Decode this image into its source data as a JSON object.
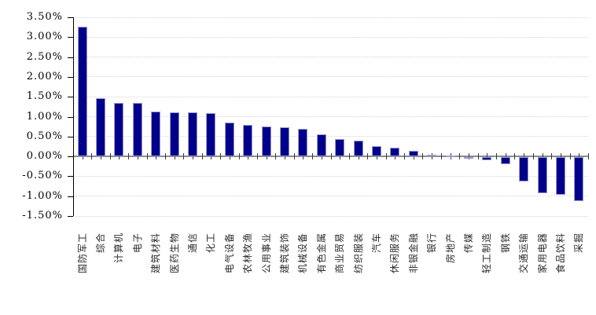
{
  "chart_data": {
    "type": "bar",
    "title": "",
    "xlabel": "",
    "ylabel": "",
    "categories": [
      "国防军工",
      "综合",
      "计算机",
      "电子",
      "建筑材料",
      "医药生物",
      "通信",
      "化工",
      "电气设备",
      "农林牧渔",
      "公用事业",
      "建筑装饰",
      "机械设备",
      "有色金属",
      "商业贸易",
      "纺织服装",
      "汽车",
      "休闲服务",
      "非银金融",
      "银行",
      "房地产",
      "传媒",
      "轻工制造",
      "钢铁",
      "交通运输",
      "家用电器",
      "食品饮料",
      "采掘"
    ],
    "values": [
      3.26,
      1.46,
      1.35,
      1.34,
      1.12,
      1.11,
      1.1,
      1.08,
      0.85,
      0.8,
      0.76,
      0.74,
      0.7,
      0.55,
      0.44,
      0.4,
      0.26,
      0.22,
      0.15,
      0.04,
      0.03,
      -0.03,
      -0.08,
      -0.17,
      -0.62,
      -0.9,
      -0.95,
      -1.11
    ],
    "value_unit": "%",
    "ylim": [
      -1.5,
      3.5
    ],
    "ytick_step": 0.5,
    "ytick_labels": [
      "3.50%",
      "3.00%",
      "2.50%",
      "2.00%",
      "1.50%",
      "1.00%",
      "0.50%",
      "0.00%",
      "-0.50%",
      "-1.00%",
      "-1.50%"
    ],
    "grid": "horizontal-dotted",
    "legend": "none",
    "bar_color": "#00008B",
    "bar_border_color": "#9A9AD0",
    "zero_axis_color": "#8C8C8C",
    "axis_line_color": "#000000"
  }
}
